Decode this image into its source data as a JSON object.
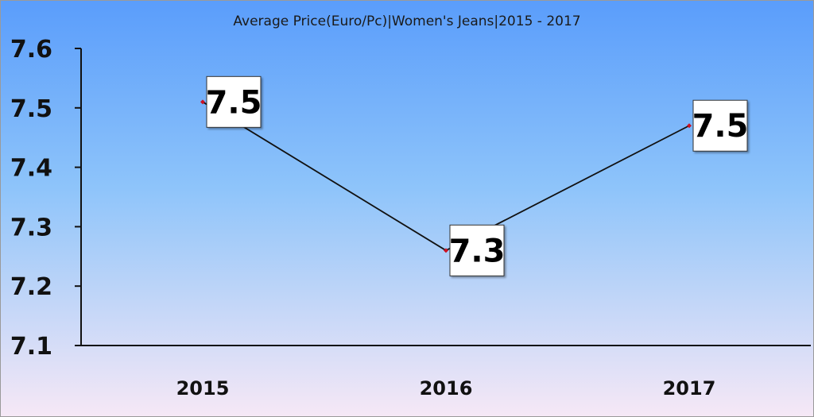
{
  "chart_data": {
    "type": "line",
    "title": "Average Price(Euro/Pc)|Women's Jeans|2015 - 2017",
    "xlabel": "",
    "ylabel": "",
    "categories": [
      "2015",
      "2016",
      "2017"
    ],
    "series": [
      {
        "values": [
          7.51,
          7.26,
          7.47
        ],
        "data_labels": [
          "7.5",
          "7.3",
          "7.5"
        ]
      }
    ],
    "ylim": [
      7.1,
      7.6
    ],
    "yticks": [
      "7.1",
      "7.2",
      "7.3",
      "7.4",
      "7.5",
      "7.6"
    ],
    "grid": false,
    "legend": "none",
    "colors": {
      "line": "#111111",
      "marker": "#cc1122",
      "bg_top": "#5a9dfb",
      "bg_mid": "#8ec4fa",
      "bg_bottom": "#f6e8f6"
    }
  }
}
